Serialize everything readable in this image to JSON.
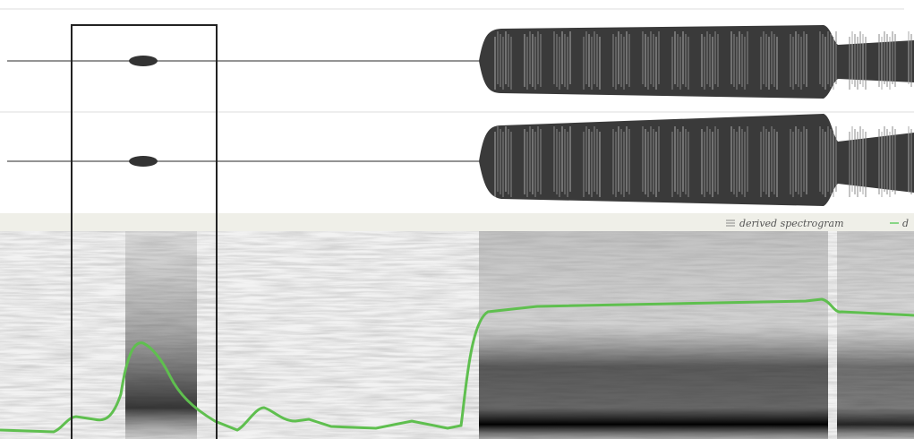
{
  "legend": {
    "items": [
      "derived spectrogram",
      "d"
    ]
  }
}
